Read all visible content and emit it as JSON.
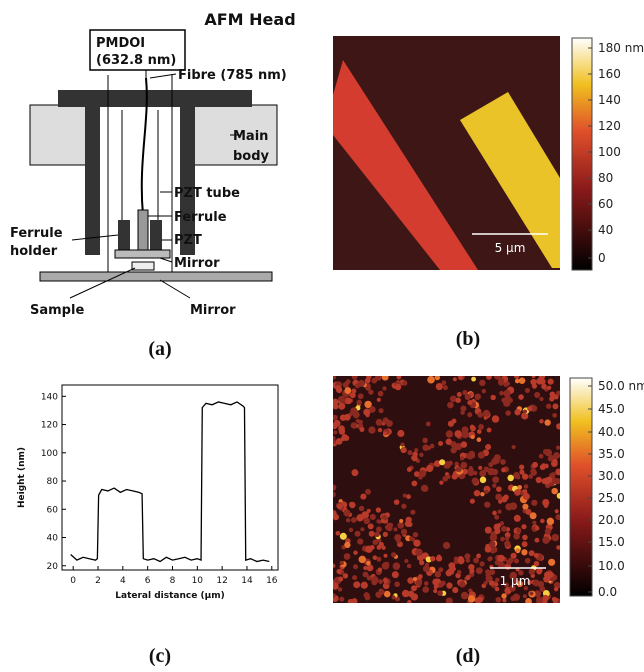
{
  "diagram": {
    "title": "AFM Head",
    "source": [
      "PMDOI",
      "(632.8 nm)"
    ],
    "fibre": "Fibre (785 nm)",
    "main_body": [
      "Main",
      "body"
    ],
    "pzt_tube": "PZT tube",
    "ferrule": "Ferrule",
    "ferrule_holder": [
      "Ferrule",
      "holder"
    ],
    "pzt": "PZT",
    "mirror_top": "Mirror",
    "sample": "Sample",
    "mirror_bottom": "Mirror"
  },
  "panel_labels": [
    "(a)",
    "(b)",
    "(c)",
    "(d)"
  ],
  "image_b": {
    "colorbar_ticks": [
      "180 nm",
      "160",
      "140",
      "120",
      "100",
      "80",
      "60",
      "40",
      "0"
    ],
    "scale_bar": "5 µm"
  },
  "image_d": {
    "colorbar_ticks": [
      "50.0 nm",
      "45.0",
      "40.0",
      "35.0",
      "30.0",
      "25.0",
      "20.0",
      "15.0",
      "10.0",
      "0.0"
    ],
    "scale_bar": "1 µm"
  },
  "chart_data": {
    "type": "line",
    "xlabel": "Lateral distance (µm)",
    "ylabel": "Height (nm)",
    "color": "#000000",
    "x": [
      -0.2,
      0.3,
      0.8,
      1.3,
      1.8,
      1.95,
      2.05,
      2.3,
      2.8,
      3.3,
      3.8,
      4.3,
      4.8,
      5.3,
      5.55,
      5.65,
      6,
      6.5,
      7,
      7.5,
      8,
      8.5,
      9,
      9.5,
      10,
      10.3,
      10.4,
      10.7,
      11.2,
      11.7,
      12.2,
      12.7,
      13.2,
      13.7,
      13.8,
      13.9,
      14.3,
      14.8,
      15.3,
      15.8
    ],
    "values": [
      28,
      24,
      26,
      25,
      24,
      25,
      70,
      74,
      73,
      75,
      72,
      74,
      73,
      72,
      71,
      25,
      24,
      25,
      23,
      26,
      24,
      25,
      26,
      24,
      25,
      24,
      132,
      135,
      134,
      136,
      135,
      134,
      136,
      133,
      132,
      24,
      25,
      23,
      24,
      23
    ],
    "xlim": [
      -0.9,
      16.5
    ],
    "ylim": [
      17,
      148
    ],
    "xticks": [
      0,
      2,
      4,
      6,
      8,
      10,
      12,
      14,
      16
    ],
    "yticks": [
      20,
      40,
      60,
      80,
      100,
      120,
      140
    ]
  }
}
